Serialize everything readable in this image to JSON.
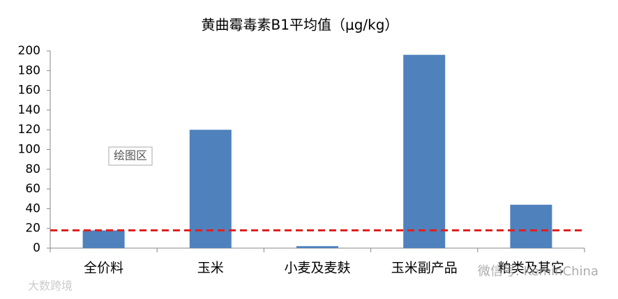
{
  "chart_data": {
    "type": "bar",
    "title": "黄曲霉毒素B1平均值（μg/kg）",
    "categories": [
      "全价料",
      "玉米",
      "小麦及麦麸",
      "玉米副产品",
      "粕类及其它"
    ],
    "values": [
      18,
      120,
      2,
      196,
      44
    ],
    "color": "#4f81bd",
    "ylim": [
      0,
      200
    ],
    "yticks": [
      0,
      20,
      40,
      60,
      80,
      100,
      120,
      140,
      160,
      180,
      200
    ],
    "grid": false,
    "reference_line": {
      "value": 18,
      "color": "#e02020"
    },
    "plot_area_label": "绘图区",
    "watermarks": [
      "微信号: KeminChina",
      "大数跨境"
    ]
  }
}
